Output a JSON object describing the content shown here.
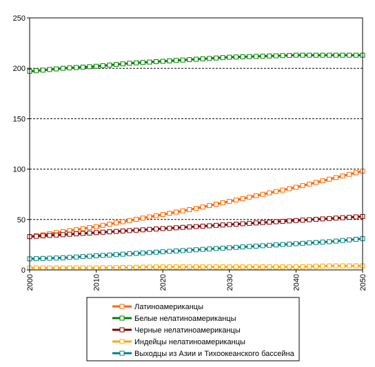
{
  "chart_data": {
    "type": "line",
    "title": "",
    "xlabel": "",
    "ylabel": "",
    "xlim": [
      2000,
      2050
    ],
    "ylim": [
      0,
      250
    ],
    "x_ticks": [
      "2000",
      "2010",
      "2020",
      "2030",
      "2040",
      "2050"
    ],
    "y_ticks": [
      "0",
      "50",
      "100",
      "150",
      "200",
      "250"
    ],
    "grid": "horizontal dashed",
    "legend_position": "bottom",
    "marker": "hollow square",
    "series": [
      {
        "name": "Латиноамериканцы",
        "color": "#ff6600",
        "points": [
          [
            2000,
            33
          ],
          [
            2005,
            38
          ],
          [
            2010,
            43
          ],
          [
            2015,
            49
          ],
          [
            2020,
            55
          ],
          [
            2025,
            61
          ],
          [
            2030,
            68
          ],
          [
            2035,
            75
          ],
          [
            2040,
            82
          ],
          [
            2045,
            90
          ],
          [
            2050,
            98
          ]
        ]
      },
      {
        "name": "Белые нелатиноамериканцы",
        "color": "#008000",
        "points": [
          [
            2000,
            197
          ],
          [
            2005,
            200
          ],
          [
            2010,
            202
          ],
          [
            2015,
            205
          ],
          [
            2020,
            207
          ],
          [
            2025,
            209
          ],
          [
            2030,
            211
          ],
          [
            2035,
            212
          ],
          [
            2040,
            213
          ],
          [
            2045,
            213
          ],
          [
            2050,
            213
          ]
        ]
      },
      {
        "name": "Черные нелатиноамериканцы",
        "color": "#800000",
        "points": [
          [
            2000,
            33
          ],
          [
            2005,
            35
          ],
          [
            2010,
            37
          ],
          [
            2015,
            39
          ],
          [
            2020,
            41
          ],
          [
            2025,
            43
          ],
          [
            2030,
            45
          ],
          [
            2035,
            47
          ],
          [
            2040,
            49
          ],
          [
            2045,
            51
          ],
          [
            2050,
            53
          ]
        ]
      },
      {
        "name": "Индейцы нелатиноамериканцы",
        "color": "#ffa500",
        "points": [
          [
            2000,
            2
          ],
          [
            2010,
            2
          ],
          [
            2020,
            3
          ],
          [
            2030,
            3
          ],
          [
            2040,
            3
          ],
          [
            2045,
            4
          ],
          [
            2050,
            4
          ]
        ]
      },
      {
        "name": "Выходцы из Азии и Тихоокеанского бассейна",
        "color": "#008080",
        "points": [
          [
            2000,
            11
          ],
          [
            2005,
            12
          ],
          [
            2010,
            14
          ],
          [
            2015,
            16
          ],
          [
            2020,
            18
          ],
          [
            2025,
            20
          ],
          [
            2030,
            22
          ],
          [
            2035,
            24
          ],
          [
            2040,
            26
          ],
          [
            2045,
            28
          ],
          [
            2050,
            31
          ]
        ]
      }
    ]
  }
}
